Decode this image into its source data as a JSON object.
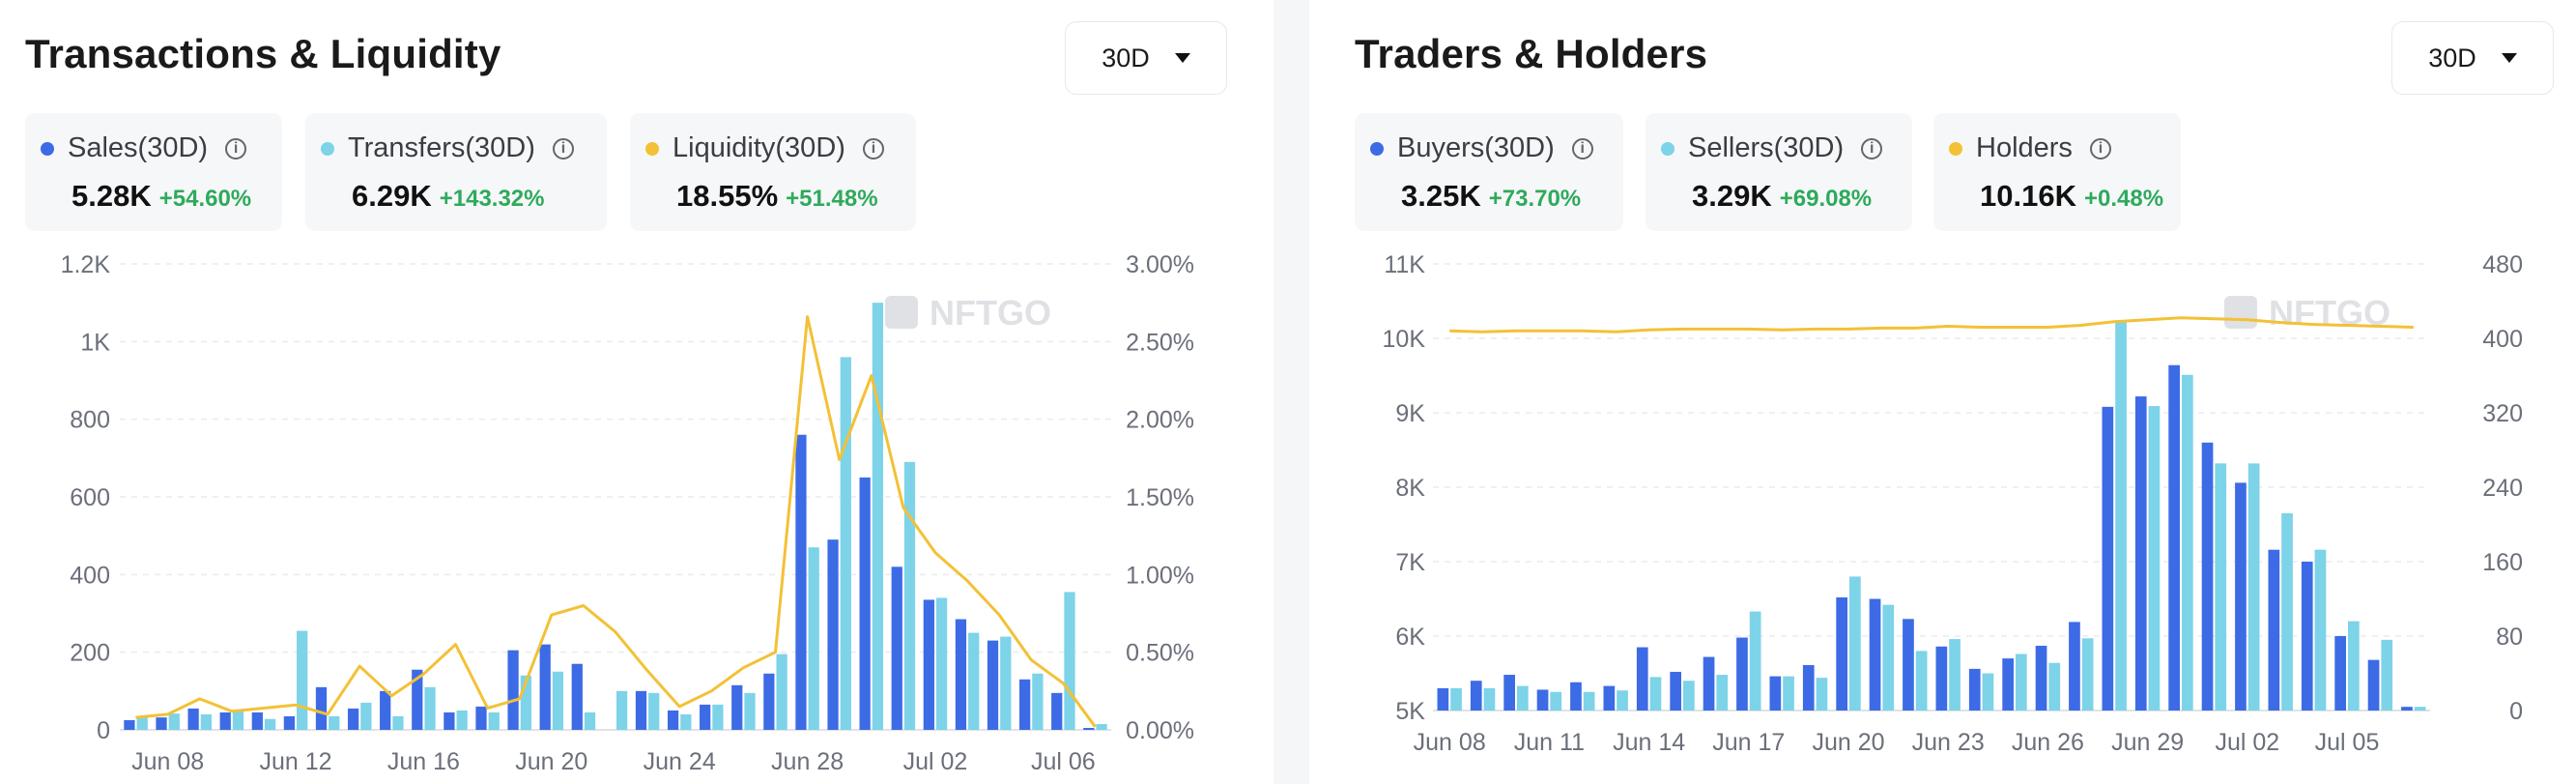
{
  "colors": {
    "blue": "#3d6be6",
    "cyan": "#7dd3e8",
    "yellow": "#f3c136",
    "green": "#2eaa5c",
    "axis_text": "#6b6f7a",
    "grid": "#e9ebef"
  },
  "left": {
    "title": "Transactions & Liquidity",
    "range_label": "30D",
    "watermark": "NFTGO",
    "stats": [
      {
        "label": "Sales(30D)",
        "value": "5.28K",
        "change": "+54.60%",
        "color": "#3d6be6"
      },
      {
        "label": "Transfers(30D)",
        "value": "6.29K",
        "change": "+143.32%",
        "color": "#7dd3e8"
      },
      {
        "label": "Liquidity(30D)",
        "value": "18.55%",
        "change": "+51.48%",
        "color": "#f3c136"
      }
    ]
  },
  "right": {
    "title": "Traders & Holders",
    "range_label": "30D",
    "watermark": "NFTGO",
    "stats": [
      {
        "label": "Buyers(30D)",
        "value": "3.25K",
        "change": "+73.70%",
        "color": "#3d6be6"
      },
      {
        "label": "Sellers(30D)",
        "value": "3.29K",
        "change": "+69.08%",
        "color": "#7dd3e8"
      },
      {
        "label": "Holders",
        "value": "10.16K",
        "change": "+0.48%",
        "color": "#f3c136"
      }
    ]
  },
  "chart_data": [
    {
      "type": "bar",
      "categories": [
        "Jun 07",
        "Jun 08",
        "Jun 09",
        "Jun 10",
        "Jun 11",
        "Jun 12",
        "Jun 13",
        "Jun 14",
        "Jun 15",
        "Jun 16",
        "Jun 17",
        "Jun 18",
        "Jun 19",
        "Jun 20",
        "Jun 21",
        "Jun 22",
        "Jun 23",
        "Jun 24",
        "Jun 25",
        "Jun 26",
        "Jun 27",
        "Jun 28",
        "Jun 29",
        "Jun 30",
        "Jul 01",
        "Jul 02",
        "Jul 03",
        "Jul 04",
        "Jul 05",
        "Jul 06",
        "Jul 07"
      ],
      "x_tick_labels": [
        "Jun 08",
        "Jun 12",
        "Jun 16",
        "Jun 20",
        "Jun 24",
        "Jun 28",
        "Jul 02",
        "Jul 06"
      ],
      "series": [
        {
          "name": "Sales(30D)",
          "kind": "bar",
          "axis": "left",
          "values": [
            25,
            32,
            55,
            45,
            45,
            35,
            110,
            55,
            100,
            155,
            45,
            60,
            205,
            220,
            170,
            0,
            100,
            50,
            65,
            115,
            145,
            760,
            490,
            650,
            420,
            335,
            285,
            230,
            130,
            95,
            5
          ]
        },
        {
          "name": "Transfers(30D)",
          "kind": "bar",
          "axis": "left",
          "values": [
            35,
            42,
            40,
            48,
            28,
            255,
            35,
            70,
            35,
            110,
            50,
            45,
            140,
            150,
            45,
            100,
            95,
            40,
            65,
            95,
            195,
            470,
            960,
            1100,
            690,
            340,
            250,
            240,
            145,
            355,
            15
          ]
        },
        {
          "name": "Liquidity(30D)",
          "kind": "line",
          "axis": "right",
          "values": [
            0.08,
            0.1,
            0.2,
            0.12,
            0.14,
            0.16,
            0.1,
            0.41,
            0.22,
            0.36,
            0.55,
            0.14,
            0.2,
            0.74,
            0.8,
            0.63,
            0.38,
            0.15,
            0.25,
            0.4,
            0.5,
            2.66,
            1.74,
            2.28,
            1.43,
            1.14,
            0.96,
            0.74,
            0.45,
            0.3,
            0.02
          ]
        }
      ],
      "ylim_left": [
        0,
        1200
      ],
      "y_ticks_left": [
        "0",
        "200",
        "400",
        "600",
        "800",
        "1K",
        "1.2K"
      ],
      "ylim_right": [
        0,
        3
      ],
      "y_ticks_right": [
        "0.00%",
        "0.50%",
        "1.00%",
        "1.50%",
        "2.00%",
        "2.50%",
        "3.00%"
      ]
    },
    {
      "type": "bar",
      "categories": [
        "Jun 08",
        "Jun 09",
        "Jun 10",
        "Jun 11",
        "Jun 12",
        "Jun 13",
        "Jun 14",
        "Jun 15",
        "Jun 16",
        "Jun 17",
        "Jun 18",
        "Jun 19",
        "Jun 20",
        "Jun 21",
        "Jun 22",
        "Jun 23",
        "Jun 24",
        "Jun 25",
        "Jun 26",
        "Jun 27",
        "Jun 28",
        "Jun 29",
        "Jun 30",
        "Jul 01",
        "Jul 02",
        "Jul 03",
        "Jul 04",
        "Jul 05",
        "Jul 06",
        "Jul 07"
      ],
      "x_tick_labels": [
        "Jun 08",
        "Jun 11",
        "Jun 14",
        "Jun 17",
        "Jun 20",
        "Jun 23",
        "Jun 26",
        "Jun 29",
        "Jul 02",
        "Jul 05"
      ],
      "series": [
        {
          "name": "Buyers(30D)",
          "kind": "bar",
          "axis": "left",
          "values": [
            5300,
            5400,
            5480,
            5280,
            5380,
            5330,
            5850,
            5520,
            5720,
            5980,
            5460,
            5610,
            6520,
            6500,
            6230,
            5860,
            5560,
            5700,
            5870,
            6190,
            9080,
            9220,
            9640,
            8600,
            8060,
            7160,
            7000,
            6000,
            5680,
            5050
          ]
        },
        {
          "name": "Sellers(30D)",
          "kind": "bar",
          "axis": "left",
          "values": [
            5300,
            5300,
            5330,
            5250,
            5250,
            5270,
            5450,
            5400,
            5480,
            6330,
            5460,
            5440,
            6800,
            6420,
            5800,
            5960,
            5500,
            5760,
            5640,
            5970,
            10220,
            9090,
            9510,
            8320,
            8320,
            7650,
            7160,
            6200,
            5950,
            5050
          ]
        },
        {
          "name": "Holders",
          "kind": "line",
          "axis": "right",
          "values": [
            408,
            407,
            408,
            408,
            408,
            407,
            409,
            410,
            410,
            410,
            409,
            410,
            410,
            411,
            411,
            413,
            412,
            412,
            412,
            414,
            418,
            420,
            422,
            421,
            420,
            417,
            415,
            414,
            413,
            412
          ]
        }
      ],
      "ylim_left": [
        5000,
        11000
      ],
      "y_ticks_left": [
        "5K",
        "6K",
        "7K",
        "8K",
        "9K",
        "10K",
        "11K"
      ],
      "ylim_right": [
        0,
        480
      ],
      "y_ticks_right": [
        "0",
        "80",
        "160",
        "240",
        "320",
        "400",
        "480"
      ]
    }
  ]
}
